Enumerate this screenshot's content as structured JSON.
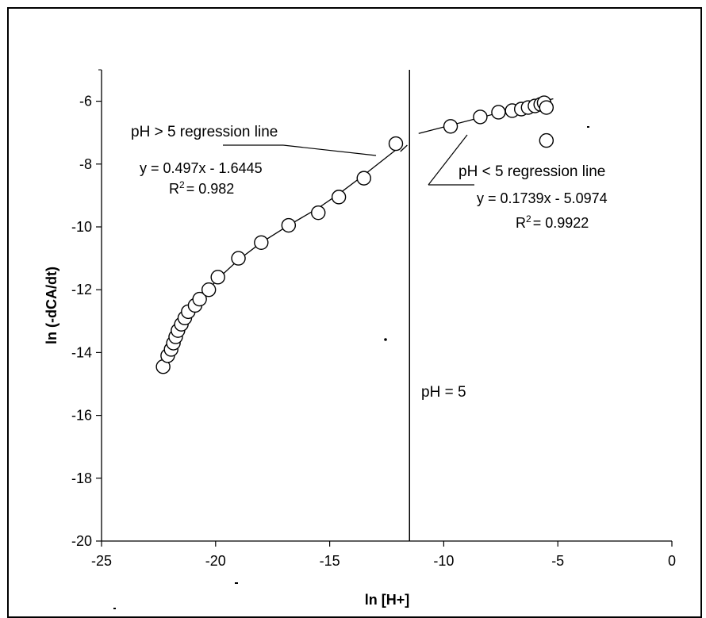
{
  "chart_data": {
    "type": "scatter",
    "xlabel": "ln [H+]",
    "ylabel": "ln (-dCA/dt)",
    "xlim": [
      -25,
      0
    ],
    "ylim": [
      -20,
      -5
    ],
    "x_ticks": [
      "-25",
      "-20",
      "-15",
      "-10",
      "-5",
      "0"
    ],
    "y_ticks": [
      "-6",
      "-8",
      "-10",
      "-12",
      "-14",
      "-16",
      "-18",
      "-20"
    ],
    "grid": false,
    "series": [
      {
        "marker": "open-circle",
        "points": [
          {
            "x": -22.3,
            "y": -14.45
          },
          {
            "x": -22.1,
            "y": -14.1
          },
          {
            "x": -21.95,
            "y": -13.9
          },
          {
            "x": -21.85,
            "y": -13.7
          },
          {
            "x": -21.75,
            "y": -13.5
          },
          {
            "x": -21.65,
            "y": -13.3
          },
          {
            "x": -21.5,
            "y": -13.1
          },
          {
            "x": -21.35,
            "y": -12.9
          },
          {
            "x": -21.2,
            "y": -12.7
          },
          {
            "x": -20.9,
            "y": -12.5
          },
          {
            "x": -20.7,
            "y": -12.3
          },
          {
            "x": -20.3,
            "y": -12.0
          },
          {
            "x": -19.9,
            "y": -11.6
          },
          {
            "x": -19.0,
            "y": -11.0
          },
          {
            "x": -18.0,
            "y": -10.5
          },
          {
            "x": -16.8,
            "y": -9.95
          },
          {
            "x": -15.5,
            "y": -9.55
          },
          {
            "x": -14.6,
            "y": -9.05
          },
          {
            "x": -13.5,
            "y": -8.45
          },
          {
            "x": -12.1,
            "y": -7.35
          },
          {
            "x": -9.7,
            "y": -6.8
          },
          {
            "x": -8.4,
            "y": -6.5
          },
          {
            "x": -7.6,
            "y": -6.35
          },
          {
            "x": -7.0,
            "y": -6.3
          },
          {
            "x": -6.6,
            "y": -6.25
          },
          {
            "x": -6.3,
            "y": -6.2
          },
          {
            "x": -6.0,
            "y": -6.15
          },
          {
            "x": -5.75,
            "y": -6.1
          },
          {
            "x": -5.6,
            "y": -6.05
          },
          {
            "x": -5.5,
            "y": -6.2
          },
          {
            "x": -5.5,
            "y": -7.25
          }
        ]
      }
    ],
    "regressions": [
      {
        "label": "pH > 5 regression line",
        "equation": "y = 0.497x - 1.6445",
        "r2_label": "R",
        "r2_value": "= 0.982"
      },
      {
        "label": "pH < 5 regression line",
        "equation": "y = 0.1739x - 5.0974",
        "r2_label": "R",
        "r2_value": "= 0.9922"
      }
    ],
    "vertical_line": {
      "x": -11.5,
      "label": "pH = 5"
    }
  }
}
